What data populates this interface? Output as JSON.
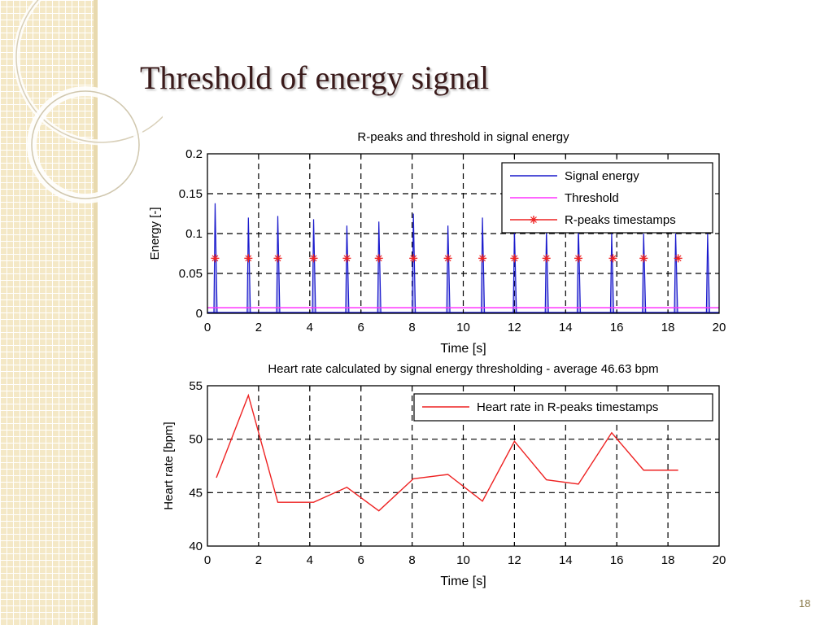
{
  "slide": {
    "title": "Threshold of energy signal",
    "page_number": "18"
  },
  "colors": {
    "energy": "#1a1acc",
    "threshold": "#ff33ff",
    "rpeaks": "#ee2222",
    "heart_rate": "#ee2222",
    "axis": "#000000",
    "title_text": "#3a1a1a"
  },
  "chart_data": [
    {
      "type": "line",
      "title": "R-peaks and threshold in signal energy",
      "xlabel": "Time [s]",
      "ylabel": "Energy [-]",
      "xlim": [
        0,
        20
      ],
      "ylim": [
        0,
        0.2
      ],
      "xticks": [
        0,
        2,
        4,
        6,
        8,
        10,
        12,
        14,
        16,
        18,
        20
      ],
      "yticks": [
        0,
        0.05,
        0.1,
        0.15,
        0.2
      ],
      "ytick_labels": [
        "0",
        "0.05",
        "0.1",
        "0.15",
        "0.2"
      ],
      "grid": true,
      "legend_position": "top-right",
      "series": [
        {
          "name": "Signal energy",
          "kind": "spikes",
          "x": [
            0.3,
            1.6,
            2.75,
            4.15,
            5.45,
            6.7,
            8.05,
            9.4,
            10.75,
            12.0,
            13.25,
            14.5,
            15.8,
            17.05,
            18.3,
            19.55
          ],
          "y": [
            0.138,
            0.12,
            0.122,
            0.118,
            0.11,
            0.115,
            0.125,
            0.11,
            0.12,
            0.105,
            0.105,
            0.11,
            0.1,
            0.1,
            0.1,
            0.1
          ]
        },
        {
          "name": "Threshold",
          "kind": "hline",
          "y": 0.007
        },
        {
          "name": "R-peaks timestamps",
          "kind": "markers",
          "x": [
            0.3,
            1.6,
            2.75,
            4.15,
            5.45,
            6.7,
            8.05,
            9.4,
            10.75,
            12.0,
            13.25,
            14.5,
            15.85,
            17.05,
            18.4
          ],
          "y": [
            0.069,
            0.069,
            0.069,
            0.069,
            0.069,
            0.069,
            0.069,
            0.069,
            0.069,
            0.069,
            0.069,
            0.069,
            0.069,
            0.069,
            0.069
          ]
        }
      ]
    },
    {
      "type": "line",
      "title": "Heart rate calculated by signal energy thresholding - average 46.63 bpm",
      "xlabel": "Time [s]",
      "ylabel": "Heart rate [bpm]",
      "xlim": [
        0,
        20
      ],
      "ylim": [
        40,
        55
      ],
      "xticks": [
        0,
        2,
        4,
        6,
        8,
        10,
        12,
        14,
        16,
        18,
        20
      ],
      "yticks": [
        40,
        45,
        50,
        55
      ],
      "ytick_labels": [
        "40",
        "45",
        "50",
        "55"
      ],
      "grid": true,
      "legend_position": "top-right",
      "series": [
        {
          "name": "Heart rate in R-peaks timestamps",
          "x": [
            0.35,
            1.6,
            2.75,
            4.15,
            5.45,
            6.7,
            8.05,
            9.4,
            10.75,
            12.0,
            13.25,
            14.5,
            15.8,
            17.05,
            18.4
          ],
          "y": [
            46.4,
            54.1,
            44.1,
            44.1,
            45.5,
            43.3,
            46.3,
            46.7,
            44.2,
            49.8,
            46.2,
            45.8,
            50.6,
            47.1,
            47.1
          ]
        }
      ]
    }
  ]
}
